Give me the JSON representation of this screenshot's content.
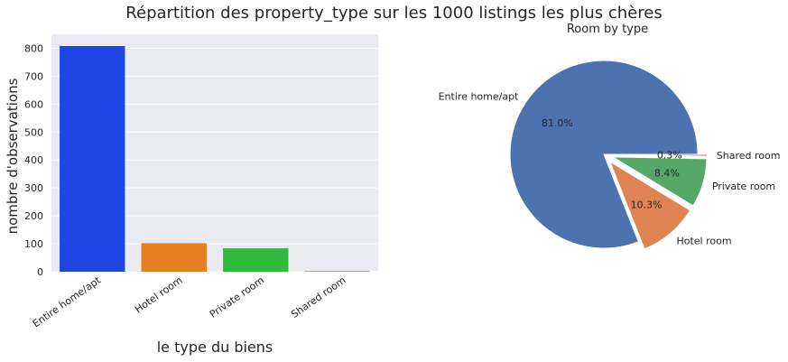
{
  "figure": {
    "title": "Répartition des property_type sur les 1000 listings les plus chères"
  },
  "chart_data": [
    {
      "type": "bar",
      "title": "",
      "xlabel": "le type du biens",
      "ylabel": "nombre d'observations",
      "categories": [
        "Entire home/apt",
        "Hotel room",
        "Private room",
        "Shared room"
      ],
      "values": [
        808,
        102,
        84,
        3
      ],
      "colors": [
        "#1f46e4",
        "#e67e22",
        "#2fbb3a",
        "#a6a6a6"
      ],
      "ylim": [
        0,
        850
      ],
      "yticks": [
        "0",
        "100",
        "200",
        "300",
        "400",
        "500",
        "600",
        "700",
        "800"
      ],
      "grid": true,
      "background": "#eaeaf2"
    },
    {
      "type": "pie",
      "title": "Room by type",
      "labels": [
        "Entire home/apt",
        "Hotel room",
        "Private room",
        "Shared room"
      ],
      "values": [
        81.0,
        10.3,
        8.4,
        0.3
      ],
      "pct_labels": [
        "81.0%",
        "10.3%",
        "8.4%",
        "0.3%"
      ],
      "colors": [
        "#4c72b0",
        "#dd8452",
        "#55a868",
        "#c44e52"
      ],
      "explode": [
        0,
        0.1,
        0.1,
        0.1
      ],
      "counterclock": false
    }
  ]
}
